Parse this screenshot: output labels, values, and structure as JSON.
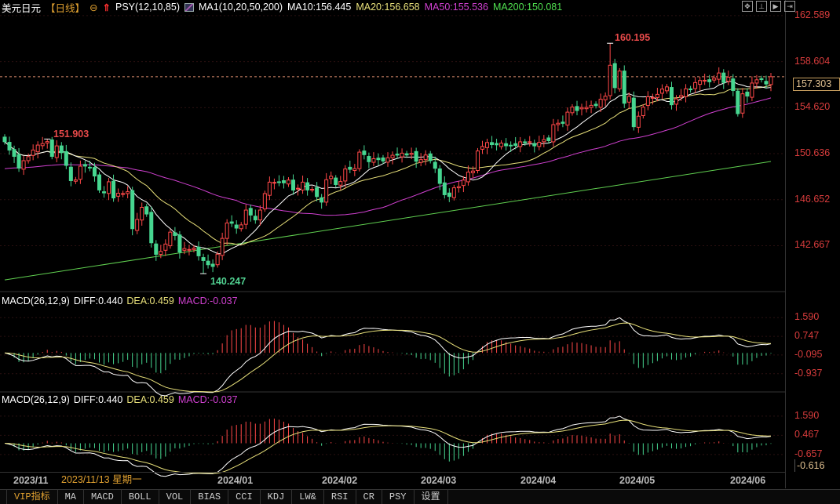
{
  "header": {
    "symbol": "美元日元",
    "period": "【日线】",
    "psy": "PSY(12,10,85)",
    "ma_label": "MA1(10,20,50,200)",
    "ma10": "MA10:156.445",
    "ma20": "MA20:156.658",
    "ma50": "MA50:155.536",
    "ma200": "MA200:150.081"
  },
  "toolbar_icons": [
    "crosshair-icon",
    "fit-icon",
    "play-icon",
    "scroll-right-icon"
  ],
  "colors": {
    "up": "#ff4848",
    "down": "#46d690",
    "ma10": "#ffffff",
    "ma20": "#e8e07a",
    "ma50": "#d040d0",
    "ma200": "#60d050",
    "grid": "#3a1010",
    "diff": "#ffffff",
    "dea": "#e8e07a"
  },
  "chart_data": {
    "type": "candlestick",
    "ylim": [
      138.83,
      162.72
    ],
    "y_ticks": [
      "162.589",
      "158.604",
      "154.620",
      "150.636",
      "146.652",
      "142.667"
    ],
    "y_tick_values": [
      162.589,
      158.604,
      154.62,
      150.636,
      146.652,
      142.667
    ],
    "current_price": "157.303",
    "current_price_value": 157.303,
    "closes": [
      151.67,
      150.95,
      150.4,
      149.39,
      150.03,
      150.38,
      150.95,
      151.38,
      151.51,
      151.68,
      150.4,
      151.31,
      150.72,
      149.62,
      148.3,
      148.37,
      149.55,
      149.56,
      149.44,
      148.7,
      147.49,
      147.24,
      148.2,
      146.8,
      147.21,
      147.18,
      147.34,
      144.14,
      144.94,
      145.99,
      145.41,
      142.92,
      141.92,
      142.17,
      142.81,
      143.84,
      143.55,
      142.12,
      142.42,
      142.34,
      142.45,
      141.79,
      141.38,
      141.02,
      140.87,
      141.93,
      143.3,
      144.63,
      144.61,
      144.19,
      144.47,
      145.75,
      145.32,
      144.9,
      145.75,
      147.18,
      148.17,
      148.15,
      148.15,
      148.11,
      148.35,
      147.48,
      147.64,
      148.17,
      147.49,
      147.55,
      146.92,
      146.44,
      148.38,
      148.68,
      147.96,
      148.22,
      149.31,
      149.28,
      149.34,
      150.77,
      150.55,
      149.94,
      150.2,
      150.12,
      150.0,
      150.28,
      150.5,
      150.51,
      150.68,
      150.52,
      150.67,
      149.98,
      150.12,
      150.52,
      150.04,
      149.37,
      148.06,
      147.08,
      146.93,
      147.68,
      147.78,
      148.35,
      149.04,
      149.13,
      150.87,
      151.26,
      151.6,
      151.42,
      151.4,
      151.55,
      151.32,
      151.35,
      151.35,
      151.66,
      151.57,
      151.67,
      151.31,
      151.62,
      151.85,
      151.76,
      153.15,
      153.27,
      153.26,
      154.23,
      154.67,
      154.37,
      154.63,
      154.64,
      154.82,
      154.8,
      155.35,
      155.61,
      158.29,
      156.35,
      157.79,
      155.0,
      155.6,
      152.97,
      153.88,
      154.66,
      155.56,
      155.5,
      155.77,
      156.23,
      156.42,
      154.87,
      155.38,
      155.67,
      156.25,
      156.17,
      156.79,
      156.97,
      156.99,
      156.86,
      157.18,
      157.62,
      156.8,
      157.26,
      156.1,
      154.1,
      155.82,
      155.62,
      156.75,
      157.03,
      157.05,
      156.67,
      157.3
    ],
    "ma200_range": [
      139.7,
      149.96
    ],
    "annotations": [
      {
        "text": "151.903",
        "value": 151.903,
        "index": 9,
        "kind": "high"
      },
      {
        "text": "140.247",
        "value": 140.247,
        "index": 42,
        "kind": "low"
      },
      {
        "text": "160.195",
        "value": 160.195,
        "index": 128,
        "kind": "high"
      }
    ],
    "x_ticks": [
      "2023/11",
      "2024/01",
      "2024/02",
      "2024/03",
      "2024/04",
      "2024/05",
      "2024/06"
    ],
    "crosshair_date": "2023/11/13 星期一"
  },
  "macd_panels": [
    {
      "title": "MACD(26,12,9)",
      "diff": "DIFF:0.440",
      "dea": "DEA:0.459",
      "macd": "MACD:-0.037",
      "ticks": [
        "1.590",
        "0.747",
        "-0.095",
        "-0.937"
      ],
      "tick_values": [
        1.59,
        0.747,
        -0.095,
        -0.937
      ],
      "ylim": [
        -1.76,
        2.13
      ]
    },
    {
      "title": "MACD(26,12,9)",
      "diff": "DIFF:0.440",
      "dea": "DEA:0.459",
      "macd": "MACD:-0.037",
      "ticks": [
        "1.590",
        "0.467",
        "-0.657"
      ],
      "tick_values": [
        1.59,
        0.467,
        -0.657
      ],
      "ylim": [
        -1.58,
        2.27
      ],
      "cursor_value": "-0.616"
    }
  ],
  "tabs": [
    "VIP指标",
    "MA",
    "MACD",
    "BOLL",
    "VOL",
    "BIAS",
    "CCI",
    "KDJ",
    "LW&",
    "RSI",
    "CR",
    "PSY",
    "设置"
  ],
  "active_tab": "VIP指标"
}
